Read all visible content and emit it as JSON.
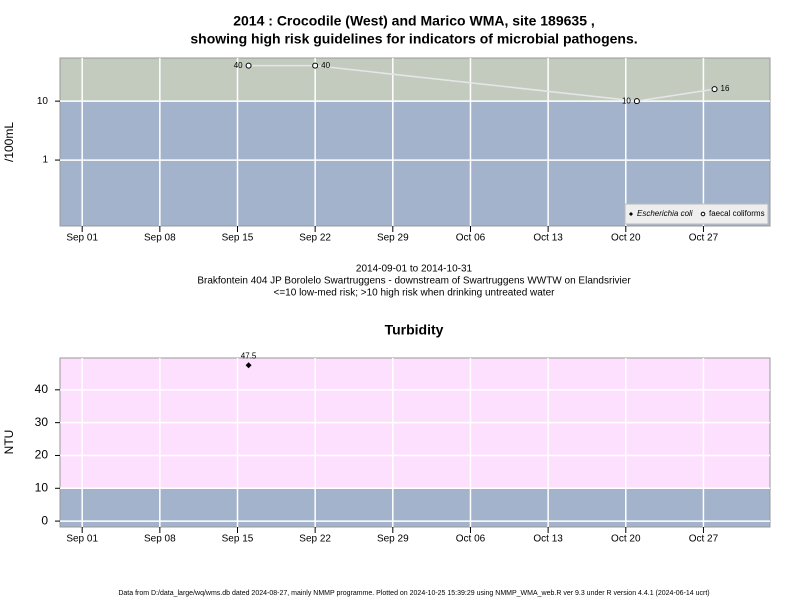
{
  "title": [
    "2014 : Crocodile (West) and Marico WMA, site 189635 ,",
    "showing high risk guidelines for indicators of microbial pathogens."
  ],
  "footer": "Data from D:/data_large/wq/wms.db dated 2024-08-27, mainly NMMP programme. Plotted on 2024-10-25 15:39:29 using NMMP_WMA_web.R ver 9.3 under R version 4.4.1 (2024-06-14 ucrt)",
  "chart_data": [
    {
      "type": "line",
      "ylabel": "/100mL",
      "log_y": true,
      "grid": true,
      "legend": "bottom right",
      "captions": [
        "2014-09-01 to 2014-10-31",
        "Brakfontein 404 JP Borolelo Swartruggens - downstream of Swartruggens WWTW on Elandsrivier",
        "<=10 low-med risk; >10 high risk when drinking untreated water"
      ],
      "threshold": 10,
      "above_color": "#c3cbbf",
      "below_color": "#a2b3cb",
      "line_color": "#e6e6e6",
      "x": [
        "2014-09-16",
        "2014-09-22",
        "2014-10-21",
        "2014-10-28"
      ],
      "series": [
        {
          "name": "Escherichia coli",
          "color": "#000000",
          "marker": "diamond",
          "values": [
            null,
            null,
            null,
            null
          ]
        },
        {
          "name": "faecal coliforms",
          "color": "#000000",
          "marker": "circle-open",
          "values": [
            40,
            40,
            10,
            16
          ]
        }
      ],
      "xlim": [
        "2014-08-30",
        "2014-11-02"
      ],
      "xticks": [
        {
          "value": "2014-09-01",
          "label": "Sep 01"
        },
        {
          "value": "2014-09-08",
          "label": "Sep 08"
        },
        {
          "value": "2014-09-15",
          "label": "Sep 15"
        },
        {
          "value": "2014-09-22",
          "label": "Sep 22"
        },
        {
          "value": "2014-09-29",
          "label": "Sep 29"
        },
        {
          "value": "2014-10-06",
          "label": "Oct 06"
        },
        {
          "value": "2014-10-13",
          "label": "Oct 13"
        },
        {
          "value": "2014-10-20",
          "label": "Oct 20"
        },
        {
          "value": "2014-10-27",
          "label": "Oct 27"
        }
      ],
      "ylim": [
        0.076,
        54
      ],
      "yticks": [
        1,
        10
      ]
    },
    {
      "type": "scatter",
      "title": "Turbidity",
      "ylabel": "NTU",
      "grid": true,
      "threshold": 10,
      "above_color": "#fde0fd",
      "below_color": "#a2b3cb",
      "x": [
        "2014-09-16"
      ],
      "series": [
        {
          "color": "#000000",
          "marker": "diamond",
          "values": [
            47.5
          ]
        }
      ],
      "xlim": [
        "2014-08-30",
        "2014-11-02"
      ],
      "xticks": [
        {
          "value": "2014-09-01",
          "label": "Sep 01"
        },
        {
          "value": "2014-09-08",
          "label": "Sep 08"
        },
        {
          "value": "2014-09-15",
          "label": "Sep 15"
        },
        {
          "value": "2014-09-22",
          "label": "Sep 22"
        },
        {
          "value": "2014-09-29",
          "label": "Sep 29"
        },
        {
          "value": "2014-10-06",
          "label": "Oct 06"
        },
        {
          "value": "2014-10-13",
          "label": "Oct 13"
        },
        {
          "value": "2014-10-20",
          "label": "Oct 20"
        },
        {
          "value": "2014-10-27",
          "label": "Oct 27"
        }
      ],
      "ylim": [
        -1.8,
        49.7
      ],
      "yticks": [
        0,
        10,
        20,
        30,
        40
      ]
    }
  ]
}
